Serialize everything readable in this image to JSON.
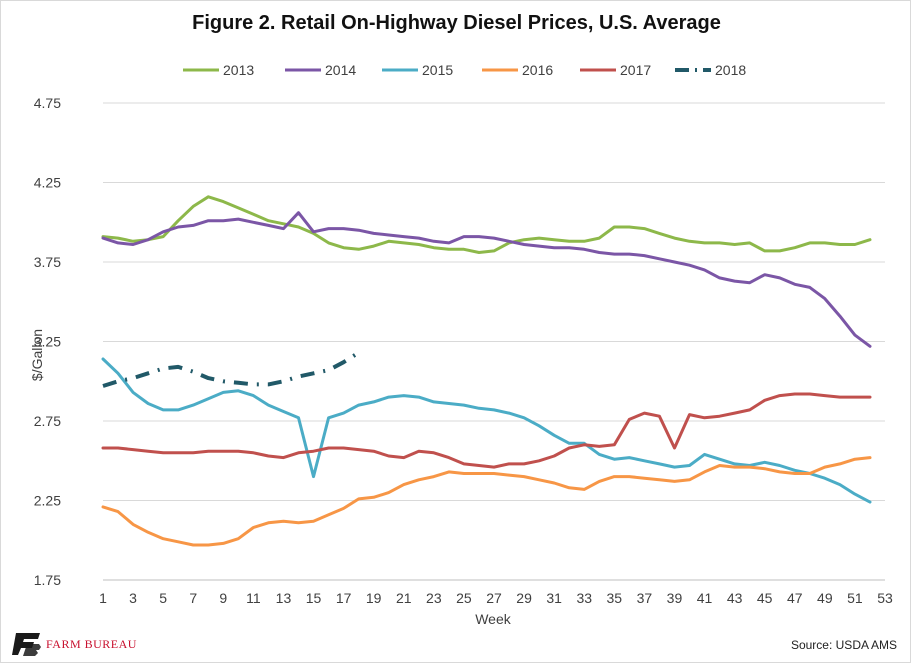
{
  "header": {
    "title": "Figure 2. Retail On-Highway Diesel Prices, U.S. Average"
  },
  "footer": {
    "source": "Source: USDA AMS",
    "logo_text": "FARM BUREAU",
    "logo_mark": "FB"
  },
  "colors": {
    "2013": "#8db84a",
    "2014": "#7b56a6",
    "2015": "#4bacc6",
    "2016": "#f79646",
    "2017": "#c0504d",
    "2018": "#215968"
  },
  "chart_data": {
    "type": "line",
    "title": "Figure 2. Retail On-Highway Diesel Prices, U.S. Average",
    "xlabel": "Week",
    "ylabel": "$/Gallon",
    "xlim": [
      1,
      53
    ],
    "ylim": [
      1.75,
      4.75
    ],
    "x_ticks": [
      "1",
      "3",
      "5",
      "7",
      "9",
      "11",
      "13",
      "15",
      "17",
      "19",
      "21",
      "23",
      "25",
      "27",
      "29",
      "31",
      "33",
      "35",
      "37",
      "39",
      "41",
      "43",
      "45",
      "47",
      "49",
      "51",
      "53"
    ],
    "y_ticks": [
      "1.75",
      "2.25",
      "2.75",
      "3.25",
      "3.75",
      "4.25",
      "4.75"
    ],
    "y_tick_values": [
      1.75,
      2.25,
      2.75,
      3.25,
      3.75,
      4.25,
      4.75
    ],
    "grid": "horizontal",
    "legend": "top",
    "series": [
      {
        "name": "2013",
        "color": "#8db84a",
        "style": "solid",
        "values": [
          3.91,
          3.9,
          3.88,
          3.89,
          3.91,
          4.01,
          4.1,
          4.16,
          4.13,
          4.09,
          4.05,
          4.01,
          3.99,
          3.97,
          3.93,
          3.87,
          3.84,
          3.83,
          3.85,
          3.88,
          3.87,
          3.86,
          3.84,
          3.83,
          3.83,
          3.81,
          3.82,
          3.87,
          3.89,
          3.9,
          3.89,
          3.88,
          3.88,
          3.9,
          3.97,
          3.97,
          3.96,
          3.93,
          3.9,
          3.88,
          3.87,
          3.87,
          3.86,
          3.87,
          3.82,
          3.82,
          3.84,
          3.87,
          3.87,
          3.86,
          3.86,
          3.89
        ]
      },
      {
        "name": "2014",
        "color": "#7b56a6",
        "style": "solid",
        "values": [
          3.9,
          3.87,
          3.86,
          3.89,
          3.94,
          3.97,
          3.98,
          4.01,
          4.01,
          4.02,
          4.0,
          3.98,
          3.96,
          4.06,
          3.94,
          3.96,
          3.96,
          3.95,
          3.93,
          3.92,
          3.91,
          3.9,
          3.88,
          3.87,
          3.91,
          3.91,
          3.9,
          3.88,
          3.86,
          3.85,
          3.84,
          3.84,
          3.83,
          3.81,
          3.8,
          3.8,
          3.79,
          3.77,
          3.75,
          3.73,
          3.7,
          3.65,
          3.63,
          3.62,
          3.67,
          3.65,
          3.61,
          3.59,
          3.52,
          3.41,
          3.29,
          3.22
        ]
      },
      {
        "name": "2015",
        "color": "#4bacc6",
        "style": "solid",
        "values": [
          3.14,
          3.05,
          2.93,
          2.86,
          2.82,
          2.82,
          2.85,
          2.89,
          2.93,
          2.94,
          2.91,
          2.85,
          2.81,
          2.77,
          2.4,
          2.77,
          2.8,
          2.85,
          2.87,
          2.9,
          2.91,
          2.9,
          2.87,
          2.86,
          2.85,
          2.83,
          2.82,
          2.8,
          2.77,
          2.72,
          2.66,
          2.61,
          2.61,
          2.54,
          2.51,
          2.52,
          2.5,
          2.48,
          2.46,
          2.47,
          2.54,
          2.51,
          2.48,
          2.47,
          2.49,
          2.47,
          2.44,
          2.42,
          2.39,
          2.35,
          2.29,
          2.24
        ]
      },
      {
        "name": "2016",
        "color": "#f79646",
        "style": "solid",
        "values": [
          2.21,
          2.18,
          2.1,
          2.05,
          2.01,
          1.99,
          1.97,
          1.97,
          1.98,
          2.01,
          2.08,
          2.11,
          2.12,
          2.11,
          2.12,
          2.16,
          2.2,
          2.26,
          2.27,
          2.3,
          2.35,
          2.38,
          2.4,
          2.43,
          2.42,
          2.42,
          2.42,
          2.41,
          2.4,
          2.38,
          2.36,
          2.33,
          2.32,
          2.37,
          2.4,
          2.4,
          2.39,
          2.38,
          2.37,
          2.38,
          2.43,
          2.47,
          2.46,
          2.46,
          2.45,
          2.43,
          2.42,
          2.42,
          2.46,
          2.48,
          2.51,
          2.52
        ]
      },
      {
        "name": "2017",
        "color": "#c0504d",
        "style": "solid",
        "values": [
          2.58,
          2.58,
          2.57,
          2.56,
          2.55,
          2.55,
          2.55,
          2.56,
          2.56,
          2.56,
          2.55,
          2.53,
          2.52,
          2.55,
          2.56,
          2.58,
          2.58,
          2.57,
          2.56,
          2.53,
          2.52,
          2.56,
          2.55,
          2.52,
          2.48,
          2.47,
          2.46,
          2.48,
          2.48,
          2.5,
          2.53,
          2.58,
          2.6,
          2.59,
          2.6,
          2.76,
          2.8,
          2.78,
          2.58,
          2.79,
          2.77,
          2.78,
          2.8,
          2.82,
          2.88,
          2.91,
          2.92,
          2.92,
          2.91,
          2.9,
          2.9,
          2.9
        ]
      },
      {
        "name": "2018",
        "color": "#215968",
        "style": "dashdot",
        "values": [
          2.97,
          3.0,
          3.02,
          3.05,
          3.08,
          3.09,
          3.06,
          3.02,
          3.0,
          2.99,
          2.98,
          2.98,
          3.0,
          3.03,
          3.05,
          3.07,
          3.12,
          3.18
        ]
      }
    ]
  }
}
